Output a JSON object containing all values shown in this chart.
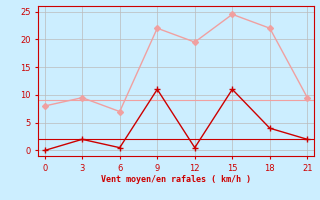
{
  "x": [
    0,
    3,
    6,
    9,
    12,
    15,
    18,
    21
  ],
  "rafales": [
    8,
    9.5,
    7,
    22,
    19.5,
    24.5,
    22,
    9.5
  ],
  "vent_moyen": [
    0,
    2,
    0.5,
    11,
    0.5,
    11,
    4,
    2
  ],
  "rafales_avg": 9.0,
  "vent_avg": 2.0,
  "color_rafales": "#f0a0a0",
  "color_vent": "#cc0000",
  "bg_color": "#cceeff",
  "grid_color": "#bbbbbb",
  "xlabel": "Vent moyen/en rafales ( km/h )",
  "xlabel_color": "#cc0000",
  "tick_color": "#cc0000",
  "spine_color": "#cc0000",
  "xlim": [
    -0.5,
    21.5
  ],
  "ylim": [
    -1,
    26
  ],
  "xticks": [
    0,
    3,
    6,
    9,
    12,
    15,
    18,
    21
  ],
  "yticks": [
    0,
    5,
    10,
    15,
    20,
    25
  ],
  "marker_size": 3,
  "line_width": 1.0
}
